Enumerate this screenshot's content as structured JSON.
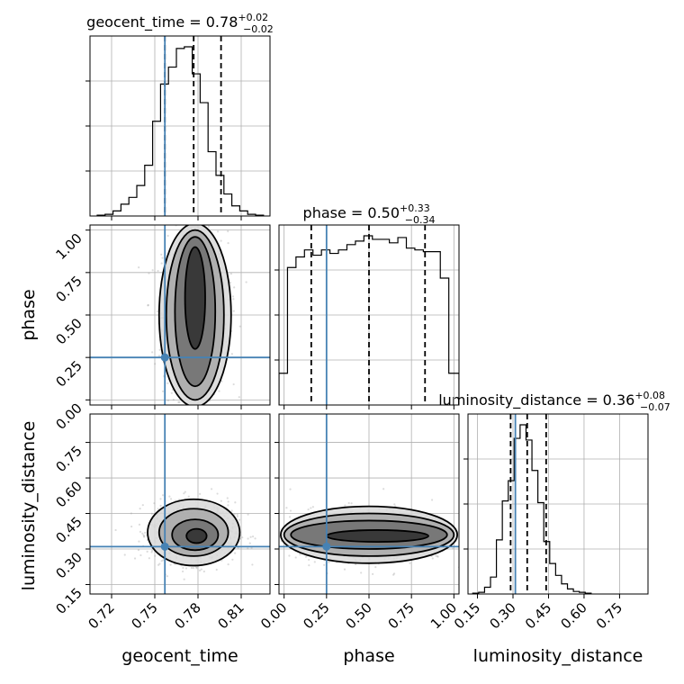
{
  "chart_data": {
    "type": "corner",
    "parameters": [
      "geocent_time",
      "phase",
      "luminosity_distance"
    ],
    "truth": {
      "geocent_time": 0.757,
      "phase": 0.25,
      "luminosity_distance": 0.31
    },
    "truth_color": "#4682b4",
    "titles": [
      {
        "main": "geocent_time = 0.78",
        "plus": "+0.02",
        "minus": "−0.02"
      },
      {
        "main": "phase = 0.50",
        "plus": "+0.33",
        "minus": "−0.34"
      },
      {
        "main": "luminosity_distance = 0.36",
        "plus": "+0.08",
        "minus": "−0.07"
      }
    ],
    "axes": {
      "geocent_time": {
        "lim": [
          0.705,
          0.83
        ],
        "ticks": [
          "0.72",
          "0.75",
          "0.78",
          "0.81"
        ],
        "tick_values": [
          0.72,
          0.75,
          0.78,
          0.81
        ]
      },
      "phase": {
        "lim": [
          -0.03,
          1.03
        ],
        "ticks": [
          "0.00",
          "0.25",
          "0.50",
          "0.75",
          "1.00"
        ],
        "tick_values": [
          0.0,
          0.25,
          0.5,
          0.75,
          1.0
        ]
      },
      "luminosity_distance": {
        "lim": [
          0.11,
          0.87
        ],
        "ticks": [
          "0.15",
          "0.30",
          "0.45",
          "0.60",
          "0.75"
        ],
        "tick_values": [
          0.15,
          0.3,
          0.45,
          0.6,
          0.75
        ]
      }
    },
    "histograms": [
      {
        "param": "geocent_time",
        "bin_edges": [
          0.71,
          0.7155,
          0.721,
          0.7265,
          0.732,
          0.7375,
          0.743,
          0.7485,
          0.754,
          0.7595,
          0.765,
          0.7705,
          0.776,
          0.7815,
          0.787,
          0.7925,
          0.798,
          0.8035,
          0.809,
          0.8145,
          0.82,
          0.8255
        ],
        "counts": [
          0.005,
          0.01,
          0.03,
          0.07,
          0.11,
          0.18,
          0.3,
          0.56,
          0.78,
          0.88,
          0.99,
          1.0,
          0.84,
          0.67,
          0.38,
          0.24,
          0.13,
          0.06,
          0.03,
          0.01,
          0.005
        ],
        "quantiles": [
          0.757,
          0.777,
          0.796
        ]
      },
      {
        "param": "phase",
        "bin_edges": [
          -0.03,
          0.02,
          0.07,
          0.12,
          0.17,
          0.22,
          0.27,
          0.32,
          0.37,
          0.42,
          0.47,
          0.52,
          0.57,
          0.62,
          0.67,
          0.72,
          0.77,
          0.82,
          0.87,
          0.92,
          0.97,
          1.03
        ],
        "counts": [
          0.18,
          0.78,
          0.84,
          0.88,
          0.85,
          0.88,
          0.86,
          0.88,
          0.91,
          0.93,
          0.96,
          0.94,
          0.94,
          0.92,
          0.95,
          0.89,
          0.88,
          0.87,
          0.87,
          0.72,
          0.18
        ],
        "quantiles": [
          0.16,
          0.5,
          0.83
        ]
      },
      {
        "param": "luminosity_distance",
        "bin_edges": [
          0.13,
          0.155,
          0.18,
          0.205,
          0.23,
          0.255,
          0.28,
          0.305,
          0.33,
          0.355,
          0.38,
          0.405,
          0.43,
          0.455,
          0.48,
          0.505,
          0.53,
          0.555,
          0.58,
          0.605,
          0.63
        ],
        "counts": [
          0.005,
          0.01,
          0.04,
          0.1,
          0.32,
          0.55,
          0.67,
          0.92,
          1.0,
          0.91,
          0.73,
          0.54,
          0.31,
          0.18,
          0.11,
          0.06,
          0.03,
          0.015,
          0.01,
          0.005
        ],
        "quantiles": [
          0.29,
          0.36,
          0.44
        ]
      }
    ],
    "contours": [
      {
        "x": "geocent_time",
        "y": "phase",
        "levels": [
          {
            "cx": 0.778,
            "cy": 0.5,
            "rx": 0.025,
            "ry": 0.54
          },
          {
            "cx": 0.778,
            "cy": 0.5,
            "rx": 0.02,
            "ry": 0.5
          },
          {
            "cx": 0.778,
            "cy": 0.52,
            "rx": 0.014,
            "ry": 0.44
          },
          {
            "cx": 0.778,
            "cy": 0.6,
            "rx": 0.007,
            "ry": 0.3
          }
        ]
      },
      {
        "x": "geocent_time",
        "y": "luminosity_distance",
        "levels": [
          {
            "cx": 0.777,
            "cy": 0.37,
            "rx": 0.032,
            "ry": 0.14
          },
          {
            "cx": 0.777,
            "cy": 0.37,
            "rx": 0.024,
            "ry": 0.1
          },
          {
            "cx": 0.778,
            "cy": 0.36,
            "rx": 0.016,
            "ry": 0.065
          },
          {
            "cx": 0.779,
            "cy": 0.355,
            "rx": 0.007,
            "ry": 0.03
          }
        ]
      },
      {
        "x": "phase",
        "y": "luminosity_distance",
        "levels": [
          {
            "cx": 0.5,
            "cy": 0.36,
            "rx": 0.52,
            "ry": 0.12
          },
          {
            "cx": 0.5,
            "cy": 0.36,
            "rx": 0.5,
            "ry": 0.09
          },
          {
            "cx": 0.5,
            "cy": 0.36,
            "rx": 0.46,
            "ry": 0.06
          },
          {
            "cx": 0.55,
            "cy": 0.355,
            "rx": 0.3,
            "ry": 0.025
          }
        ]
      }
    ],
    "grid": true
  }
}
